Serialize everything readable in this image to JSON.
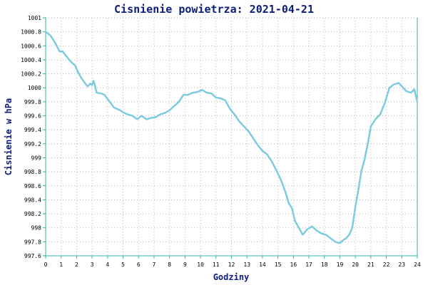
{
  "chart_data": {
    "type": "line",
    "title": "Cisnienie powietrza: 2021-04-21",
    "xlabel": "Godziny",
    "ylabel": "Cisnienie w hPa",
    "xlim": [
      0,
      24
    ],
    "ylim": [
      997.6,
      1001
    ],
    "x_ticks": [
      "0",
      "1",
      "2",
      "3",
      "4",
      "5",
      "6",
      "7",
      "8",
      "9",
      "10",
      "11",
      "12",
      "13",
      "14",
      "15",
      "16",
      "17",
      "18",
      "19",
      "20",
      "21",
      "22",
      "23",
      "24"
    ],
    "y_ticks": [
      "997.6",
      "997.8",
      "998",
      "998.2",
      "998.4",
      "998.6",
      "998.8",
      "999",
      "999.2",
      "999.4",
      "999.6",
      "999.8",
      "1000",
      "1000.2",
      "1000.4",
      "1000.6",
      "1000.8",
      "1001"
    ],
    "grid": true,
    "line_color": "#7ecbe0",
    "axis_color": "#33b3a6",
    "series": [
      {
        "x": [
          0,
          0.3,
          0.6,
          0.9,
          1.1,
          1.3,
          1.6,
          1.9,
          2.1,
          2.3,
          2.5,
          2.7,
          2.9,
          3.0,
          3.1,
          3.3,
          3.6,
          3.8,
          4.0,
          4.2,
          4.4,
          4.6,
          4.8,
          5.0,
          5.3,
          5.6,
          5.9,
          6.2,
          6.5,
          6.8,
          7.1,
          7.4,
          7.7,
          8.0,
          8.3,
          8.6,
          8.9,
          9.2,
          9.5,
          9.8,
          10.1,
          10.4,
          10.7,
          11.0,
          11.3,
          11.6,
          11.9,
          12.2,
          12.5,
          12.8,
          13.1,
          13.4,
          13.7,
          14.0,
          14.3,
          14.6,
          14.9,
          15.2,
          15.5,
          15.7,
          15.9,
          16.1,
          16.3,
          16.6,
          16.9,
          17.2,
          17.5,
          17.8,
          18.1,
          18.4,
          18.7,
          19.0,
          19.2,
          19.4,
          19.6,
          19.8,
          20.0,
          20.2,
          20.4,
          20.6,
          20.8,
          21.0,
          21.3,
          21.6,
          21.9,
          22.2,
          22.5,
          22.8,
          23.0,
          23.3,
          23.6,
          23.8,
          24.0
        ],
        "y": [
          1000.8,
          1000.75,
          1000.65,
          1000.52,
          1000.52,
          1000.46,
          1000.38,
          1000.32,
          1000.22,
          1000.14,
          1000.08,
          1000.02,
          1000.06,
          1000.04,
          1000.1,
          999.93,
          999.92,
          999.9,
          999.84,
          999.78,
          999.72,
          999.7,
          999.68,
          999.65,
          999.62,
          999.6,
          999.55,
          999.6,
          999.55,
          999.57,
          999.58,
          999.62,
          999.64,
          999.68,
          999.74,
          999.8,
          999.9,
          999.9,
          999.93,
          999.94,
          999.97,
          999.93,
          999.92,
          999.86,
          999.85,
          999.82,
          999.7,
          999.62,
          999.52,
          999.45,
          999.38,
          999.28,
          999.18,
          999.1,
          999.05,
          998.95,
          998.82,
          998.68,
          998.5,
          998.35,
          998.28,
          998.1,
          998.02,
          997.9,
          997.98,
          998.02,
          997.96,
          997.92,
          997.9,
          997.85,
          997.8,
          997.78,
          997.82,
          997.85,
          997.9,
          998.0,
          998.3,
          998.55,
          998.82,
          998.98,
          999.2,
          999.45,
          999.55,
          999.62,
          999.78,
          1000.0,
          1000.05,
          1000.07,
          1000.02,
          999.95,
          999.93,
          999.98,
          999.8
        ]
      }
    ]
  }
}
